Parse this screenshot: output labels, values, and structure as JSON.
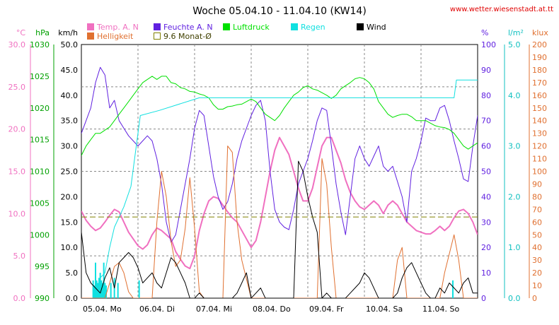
{
  "chart_data": {
    "type": "line",
    "title": "Woche 05.04.10 - 11.04.10 (KW14)",
    "source": "www.wetter.wiesenstadt.at.tt",
    "legend": {
      "row1": [
        {
          "label": "Temp. A. N",
          "color": "#f070c0",
          "type": "box"
        },
        {
          "label": "Feuchte A. N",
          "color": "#6020e0",
          "type": "box"
        },
        {
          "label": "Luftdruck",
          "color": "#00e000",
          "type": "box"
        },
        {
          "label": "Regen",
          "color": "#10e0e0",
          "type": "box"
        },
        {
          "label": "Wind",
          "color": "#000000",
          "type": "box"
        }
      ],
      "row2": [
        {
          "label": "Helligkeit",
          "color": "#e07030",
          "type": "box"
        },
        {
          "label": "9.6 Monat-Ø",
          "color": "#808000",
          "type": "outline"
        }
      ]
    },
    "x_labels": [
      "05.04. Mo",
      "06.04. Di",
      "07.04. Mi",
      "08.04. Do",
      "09.04. Fr",
      "10.04. Sa",
      "11.04. So"
    ],
    "x_range": [
      0,
      168
    ],
    "axes": {
      "temp": {
        "unit": "°C",
        "min": 0,
        "max": 30,
        "step": 5,
        "color": "#f070c0",
        "decimals": 1
      },
      "pressure": {
        "unit": "hPa",
        "min": 990,
        "max": 1030,
        "step": 5,
        "color": "#00a000",
        "decimals": 0
      },
      "wind": {
        "unit": "km/h",
        "min": 0,
        "max": 50,
        "step": 5,
        "color": "#000000",
        "decimals": 1
      },
      "humidity": {
        "unit": "%",
        "min": 0,
        "max": 100,
        "step": 10,
        "color": "#6020e0",
        "decimals": 0
      },
      "rain": {
        "unit": "l/m²",
        "min": 0,
        "max": 5,
        "step": 1,
        "color": "#10c0c0",
        "decimals": 1
      },
      "lux": {
        "unit": "klux",
        "min": 0,
        "max": 200,
        "step": 10,
        "color": "#e07030",
        "decimals": 0
      }
    },
    "grid": true,
    "series": [
      {
        "name": "Temp. A. N",
        "axis": "temp",
        "color": "#f070c0",
        "width": 2,
        "x": [
          0,
          2,
          4,
          6,
          8,
          10,
          12,
          14,
          16,
          18,
          20,
          22,
          24,
          26,
          28,
          30,
          32,
          34,
          36,
          38,
          40,
          42,
          44,
          46,
          48,
          50,
          52,
          54,
          56,
          58,
          60,
          62,
          64,
          66,
          68,
          70,
          72,
          74,
          76,
          78,
          80,
          82,
          84,
          86,
          88,
          90,
          92,
          94,
          96,
          98,
          100,
          102,
          104,
          106,
          108,
          110,
          112,
          114,
          116,
          118,
          120,
          122,
          124,
          126,
          128,
          130,
          132,
          134,
          136,
          138,
          140,
          142,
          144,
          146,
          148,
          150,
          152,
          154,
          156,
          158,
          160,
          162,
          164,
          166,
          168
        ],
        "y": [
          10.3,
          9.2,
          8.5,
          8.0,
          8.3,
          9.0,
          9.8,
          10.5,
          10.2,
          9.0,
          7.8,
          7.0,
          6.2,
          5.8,
          6.3,
          7.5,
          8.3,
          8.0,
          7.5,
          7.0,
          5.5,
          4.6,
          3.8,
          3.5,
          5.0,
          8.0,
          10.0,
          11.5,
          12.0,
          11.8,
          11.0,
          10.2,
          9.5,
          9.0,
          8.0,
          7.0,
          6.0,
          6.8,
          9.0,
          12.0,
          15.0,
          17.5,
          19.0,
          18.0,
          17.0,
          15.0,
          13.0,
          11.5,
          11.5,
          13.0,
          15.5,
          18.0,
          19.0,
          19.0,
          17.5,
          16.0,
          14.0,
          12.5,
          11.5,
          10.8,
          10.5,
          11.0,
          11.5,
          11.0,
          10.0,
          11.0,
          11.5,
          11.0,
          10.0,
          9.0,
          8.5,
          8.0,
          7.8,
          7.6,
          7.6,
          8.0,
          8.5,
          8.0,
          8.5,
          9.5,
          10.3,
          10.5,
          10.0,
          9.0,
          7.5
        ]
      },
      {
        "name": "Feuchte A. N",
        "axis": "humidity",
        "color": "#6020e0",
        "width": 1,
        "x": [
          0,
          2,
          4,
          6,
          8,
          10,
          12,
          14,
          16,
          18,
          20,
          22,
          24,
          26,
          28,
          30,
          32,
          34,
          36,
          38,
          40,
          42,
          44,
          46,
          48,
          50,
          52,
          54,
          56,
          58,
          60,
          62,
          64,
          66,
          68,
          70,
          72,
          74,
          76,
          78,
          80,
          82,
          84,
          86,
          88,
          90,
          92,
          94,
          96,
          98,
          100,
          102,
          104,
          106,
          108,
          110,
          112,
          114,
          116,
          118,
          120,
          122,
          124,
          126,
          128,
          130,
          132,
          134,
          136,
          138,
          140,
          142,
          144,
          146,
          148,
          150,
          152,
          154,
          156,
          158,
          160,
          162,
          164,
          166,
          168
        ],
        "y": [
          65,
          70,
          75,
          85,
          91,
          88,
          75,
          78,
          70,
          67,
          64,
          62,
          60,
          62,
          64,
          62,
          55,
          45,
          30,
          22,
          25,
          35,
          45,
          55,
          67,
          74,
          72,
          60,
          48,
          40,
          35,
          38,
          45,
          55,
          62,
          67,
          72,
          76,
          78,
          70,
          50,
          35,
          30,
          28,
          27,
          35,
          45,
          50,
          55,
          62,
          70,
          75,
          74,
          60,
          45,
          34,
          25,
          40,
          55,
          60,
          55,
          52,
          56,
          60,
          52,
          50,
          52,
          46,
          40,
          30,
          50,
          55,
          62,
          71,
          70,
          70,
          75,
          76,
          70,
          62,
          55,
          47,
          46,
          60,
          72
        ]
      },
      {
        "name": "Luftdruck",
        "axis": "pressure",
        "color": "#00e000",
        "width": 1,
        "x": [
          0,
          2,
          4,
          6,
          8,
          10,
          12,
          14,
          16,
          18,
          20,
          22,
          24,
          26,
          28,
          30,
          32,
          34,
          36,
          38,
          40,
          42,
          44,
          46,
          48,
          50,
          52,
          54,
          56,
          58,
          60,
          62,
          64,
          66,
          68,
          70,
          72,
          74,
          76,
          78,
          80,
          82,
          84,
          86,
          88,
          90,
          92,
          94,
          96,
          98,
          100,
          102,
          104,
          106,
          108,
          110,
          112,
          114,
          116,
          118,
          120,
          122,
          124,
          126,
          128,
          130,
          132,
          134,
          136,
          138,
          140,
          142,
          144,
          146,
          148,
          150,
          152,
          154,
          156,
          158,
          160,
          162,
          164,
          166,
          168
        ],
        "y": [
          1012.5,
          1014,
          1015,
          1016,
          1016,
          1016.5,
          1017,
          1018,
          1019,
          1020,
          1021,
          1022,
          1023,
          1024,
          1024.5,
          1025,
          1024.5,
          1025,
          1025,
          1024,
          1023.8,
          1023.2,
          1023,
          1022.6,
          1022.5,
          1022.2,
          1022,
          1021.6,
          1020.5,
          1019.8,
          1019.8,
          1020.2,
          1020.3,
          1020.5,
          1020.6,
          1021,
          1021.4,
          1021,
          1020,
          1019,
          1018.5,
          1018,
          1018.8,
          1020,
          1021,
          1022,
          1022.5,
          1023.2,
          1023.5,
          1023,
          1022.8,
          1022.4,
          1022,
          1021.5,
          1022,
          1023,
          1023.5,
          1024,
          1024.6,
          1024.8,
          1024.6,
          1024,
          1023,
          1021,
          1020,
          1019,
          1018.5,
          1018.8,
          1019,
          1019,
          1018.6,
          1018,
          1018,
          1018,
          1017.6,
          1017.2,
          1017,
          1016.9,
          1016.6,
          1016,
          1015,
          1014,
          1013.5,
          1014,
          1014.5
        ]
      },
      {
        "name": "Regen",
        "axis": "rain",
        "color": "#10e0e0",
        "width": 1,
        "x": [
          0,
          6,
          8,
          10,
          12,
          14,
          18,
          21,
          25,
          33,
          50,
          80,
          100,
          120,
          130,
          158,
          159,
          168
        ],
        "y": [
          0.0,
          0.0,
          0.4,
          0.5,
          1.0,
          1.4,
          1.8,
          2.2,
          3.6,
          3.7,
          3.95,
          3.95,
          3.95,
          3.95,
          3.95,
          3.95,
          4.3,
          4.3
        ]
      },
      {
        "name": "Regen-Balken",
        "axis": "rain",
        "color": "#10e0e0",
        "type": "bars",
        "x": [
          5,
          5.5,
          6,
          6.5,
          7,
          7.5,
          8,
          8.5,
          9,
          9.5,
          10,
          10.5,
          12.5,
          14,
          15.5,
          24.5,
          157.5
        ],
        "y": [
          0.35,
          0.25,
          0.7,
          0.35,
          0.3,
          0.4,
          0.5,
          0.35,
          0.3,
          0.7,
          0.3,
          0.25,
          0.3,
          0.4,
          0.3,
          0.35,
          0.35
        ]
      },
      {
        "name": "Helligkeit",
        "axis": "lux",
        "color": "#e07030",
        "width": 1,
        "x": [
          0,
          2,
          4,
          6,
          8,
          10,
          12,
          14,
          16,
          18,
          20,
          22,
          24,
          26,
          28,
          30,
          32,
          34,
          36,
          38,
          40,
          42,
          44,
          46,
          48,
          50,
          52,
          54,
          56,
          58,
          60,
          62,
          64,
          66,
          68,
          70,
          72,
          74,
          76,
          78,
          80,
          82,
          84,
          86,
          88,
          90,
          92,
          94,
          96,
          98,
          100,
          102,
          104,
          106,
          108,
          110,
          112,
          114,
          116,
          118,
          120,
          122,
          124,
          126,
          128,
          130,
          132,
          134,
          136,
          138,
          140,
          142,
          144,
          146,
          148,
          150,
          152,
          154,
          156,
          158,
          160,
          162,
          164,
          166,
          168
        ],
        "y": [
          0,
          0,
          0,
          0,
          0,
          0,
          12,
          25,
          28,
          20,
          5,
          0,
          0,
          0,
          0,
          0,
          60,
          100,
          80,
          45,
          25,
          30,
          55,
          95,
          55,
          5,
          0,
          0,
          0,
          0,
          0,
          120,
          115,
          60,
          30,
          15,
          0,
          0,
          0,
          0,
          0,
          0,
          0,
          0,
          0,
          0,
          0,
          0,
          0,
          0,
          0,
          110,
          90,
          40,
          0,
          0,
          0,
          0,
          0,
          0,
          0,
          0,
          0,
          0,
          0,
          0,
          0,
          30,
          40,
          0,
          0,
          0,
          0,
          0,
          0,
          0,
          0,
          20,
          35,
          50,
          30,
          0,
          0,
          0,
          0
        ]
      },
      {
        "name": "Wind",
        "axis": "wind",
        "color": "#000000",
        "width": 1,
        "x": [
          0,
          2,
          4,
          6,
          8,
          10,
          12,
          14,
          16,
          18,
          20,
          22,
          24,
          26,
          28,
          30,
          32,
          34,
          36,
          38,
          40,
          42,
          44,
          46,
          48,
          50,
          52,
          54,
          56,
          58,
          60,
          62,
          64,
          66,
          68,
          70,
          72,
          74,
          76,
          78,
          80,
          82,
          84,
          86,
          88,
          90,
          92,
          94,
          96,
          98,
          100,
          102,
          104,
          106,
          108,
          110,
          112,
          114,
          116,
          118,
          120,
          122,
          124,
          126,
          128,
          130,
          132,
          134,
          136,
          138,
          140,
          142,
          144,
          146,
          148,
          150,
          152,
          154,
          156,
          158,
          160,
          162,
          164,
          166,
          168
        ],
        "y": [
          13,
          5,
          3,
          2,
          1,
          4,
          6,
          2,
          7,
          8,
          9,
          8,
          6,
          3,
          4,
          5,
          3,
          2,
          5,
          8,
          7,
          5,
          3,
          0,
          0,
          1,
          0,
          0,
          0,
          0,
          0,
          0,
          0,
          1,
          3,
          5,
          0,
          1,
          2,
          0,
          0,
          0,
          0,
          0,
          0,
          0,
          27,
          25,
          20,
          16,
          13,
          0,
          1,
          0,
          0,
          0,
          0,
          1,
          2,
          3,
          5,
          4,
          2,
          0,
          0,
          0,
          0,
          1,
          4,
          6,
          7,
          5,
          3,
          1,
          0,
          0,
          2,
          1,
          3,
          2,
          1,
          3,
          4,
          1,
          1
        ]
      },
      {
        "name": "9.6 Monat-Ø",
        "axis": "temp",
        "color": "#808000",
        "width": 1,
        "dash": "8,4",
        "x": [
          0,
          168
        ],
        "y": [
          9.6,
          9.6
        ]
      }
    ]
  }
}
